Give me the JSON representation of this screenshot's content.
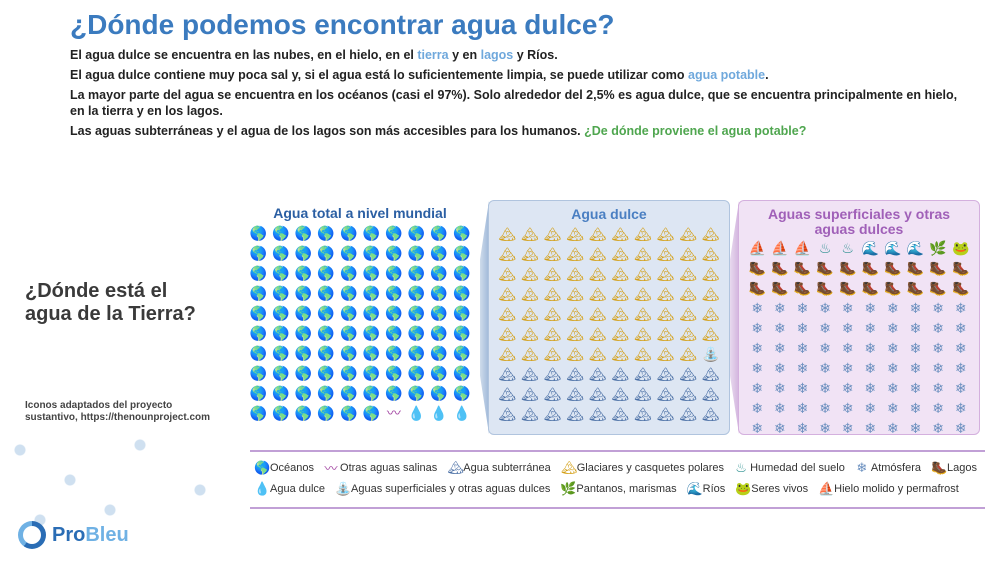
{
  "title": "¿Dónde podemos encontrar agua dulce?",
  "intro": {
    "p1a": "El agua dulce se encuentra en las nubes, en el hielo, en el ",
    "p1_link1": "tierra",
    "p1b": " y en ",
    "p1_link2": "lagos",
    "p1c": " y Ríos.",
    "p2a": "El agua dulce contiene muy poca sal y, si el agua está lo suficientemente limpia, se puede utilizar como ",
    "p2_link": "agua potable",
    "p2b": ".",
    "p3": "La mayor parte del agua se encuentra en los océanos (casi el 97%). Solo alrededor del 2,5% es agua dulce, que se encuentra principalmente en hielo, en la tierra y en los lagos.",
    "p4a": "Las aguas subterráneas y el agua de los lagos son más accesibles para los humanos. ",
    "p4_link": "¿De dónde proviene el agua potable?"
  },
  "side_question": "¿Dónde está el agua de la Tierra?",
  "credit": "Iconos adaptados del proyecto sustantivo, https://thenounproject.com",
  "charts": {
    "c1": {
      "title": "Agua total a nivel mundial",
      "cells": 100,
      "breakdown": [
        {
          "glyph": "🌎",
          "color": "#25408f",
          "count": 96
        },
        {
          "glyph": "〰",
          "color": "#a040a0",
          "count": 1
        },
        {
          "glyph": "💧",
          "color": "#2a6db5",
          "count": 3
        }
      ]
    },
    "c2": {
      "title": "Agua dulce",
      "cells": 100,
      "breakdown": [
        {
          "glyph": "🏔",
          "color": "#d4a017",
          "count": 69
        },
        {
          "glyph": "⛲",
          "color": "#c09020",
          "count": 1
        },
        {
          "glyph": "🏔",
          "color": "#4a6fa5",
          "count": 30
        }
      ]
    },
    "c3": {
      "title": "Aguas superficiales y otras aguas dulces",
      "cells": 100,
      "breakdown": [
        {
          "glyph": "⛵",
          "color": "#2a8f6f",
          "count": 3
        },
        {
          "glyph": "♨",
          "color": "#2a8f8f",
          "count": 2
        },
        {
          "glyph": "🌊",
          "color": "#2a8f6f",
          "count": 3
        },
        {
          "glyph": "🌿",
          "color": "#5a9f3a",
          "count": 1
        },
        {
          "glyph": "🐸",
          "color": "#d88",
          "count": 1
        },
        {
          "glyph": "🥾",
          "color": "#1a7a6a",
          "count": 20
        },
        {
          "glyph": "❄",
          "color": "#6a8fbf",
          "count": 70
        }
      ]
    }
  },
  "legend": {
    "row1": [
      {
        "glyph": "🌎",
        "color": "#25408f",
        "label": "Océanos"
      },
      {
        "glyph": "〰",
        "color": "#a040a0",
        "label": "Otras aguas salinas"
      },
      {
        "glyph": "🏔",
        "color": "#4a6fa5",
        "label": "Agua subterránea"
      },
      {
        "glyph": "🏔",
        "color": "#d4a017",
        "label": "Glaciares y casquetes polares"
      },
      {
        "glyph": "♨",
        "color": "#2a8f8f",
        "label": "Humedad del suelo"
      },
      {
        "glyph": "❄",
        "color": "#6a8fbf",
        "label": "Atmósfera"
      },
      {
        "glyph": "🥾",
        "color": "#1a7a6a",
        "label": "Lagos"
      }
    ],
    "row2": [
      {
        "glyph": "💧",
        "color": "#2a6db5",
        "label": "Agua dulce"
      },
      {
        "glyph": "⛲",
        "color": "#c09020",
        "label": "Aguas superficiales y otras aguas dulces"
      },
      {
        "glyph": "🌿",
        "color": "#5a9f3a",
        "label": "Pantanos, marismas"
      },
      {
        "glyph": "🌊",
        "color": "#2a8f6f",
        "label": "Ríos"
      },
      {
        "glyph": "🐸",
        "color": "#d88",
        "label": "Seres vivos"
      },
      {
        "glyph": "⛵",
        "color": "#2a8f6f",
        "label": "Hielo molido y permafrost"
      }
    ]
  },
  "logo": {
    "pro": "Pro",
    "bleu": "Bleu"
  }
}
